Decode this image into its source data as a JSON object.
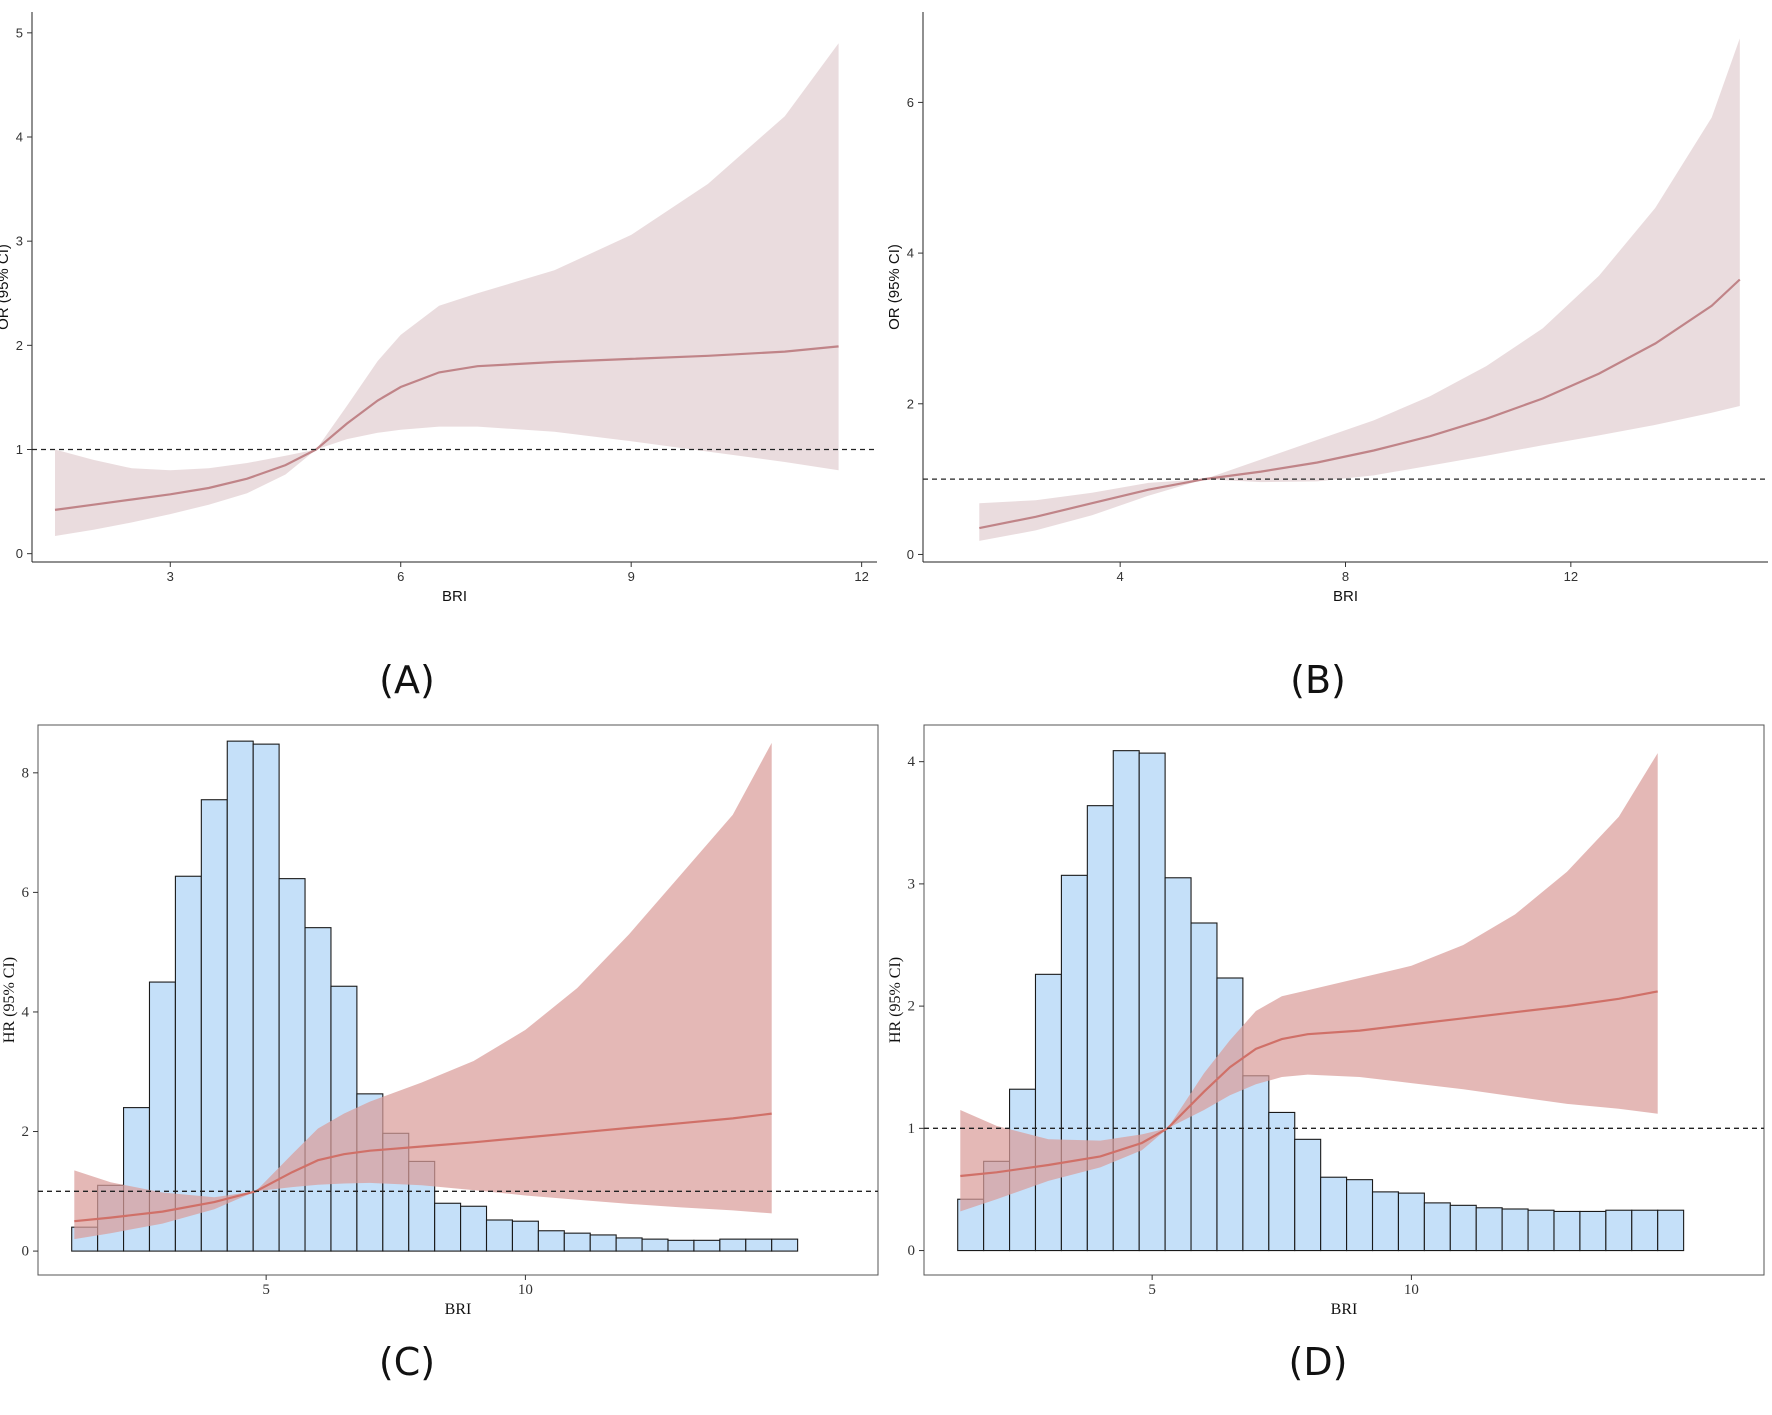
{
  "panel_labels": {
    "a": "(A)",
    "b": "(B)",
    "c": "(C)",
    "d": "(D)"
  },
  "colors": {
    "line_a_b": "#c08488",
    "band_a_b": "#e8d8da",
    "line_c_d": "#d07068",
    "band_c_d": "#d99c9a",
    "hist_fill": "#c5e0f9",
    "hist_stroke": "#1a1a1a",
    "reference_line": "#222222"
  },
  "chart_data": [
    {
      "id": "A",
      "type": "line",
      "style": "sans",
      "framed": false,
      "xlabel": "BRI",
      "ylabel": "OR (95% CI)",
      "xlim": [
        1.2,
        12.2
      ],
      "ylim": [
        -0.08,
        5.2
      ],
      "xticks": [
        3,
        6,
        9,
        12
      ],
      "yticks": [
        0,
        1,
        2,
        3,
        4,
        5
      ],
      "reference_y": 1,
      "series": [
        {
          "x": [
            1.5,
            2.0,
            2.5,
            3.0,
            3.5,
            4.0,
            4.5,
            4.9,
            5.3,
            5.7,
            6.0,
            6.5,
            7.0,
            8.0,
            9.0,
            10.0,
            11.0,
            11.7
          ],
          "y": [
            0.42,
            0.47,
            0.52,
            0.57,
            0.63,
            0.72,
            0.85,
            1.0,
            1.25,
            1.47,
            1.6,
            1.74,
            1.8,
            1.84,
            1.87,
            1.9,
            1.94,
            1.99
          ],
          "lower": [
            0.17,
            0.23,
            0.3,
            0.38,
            0.47,
            0.58,
            0.76,
            1.0,
            1.1,
            1.16,
            1.19,
            1.22,
            1.22,
            1.17,
            1.08,
            0.98,
            0.88,
            0.8
          ],
          "upper": [
            1.0,
            0.9,
            0.82,
            0.8,
            0.82,
            0.87,
            0.94,
            1.0,
            1.42,
            1.85,
            2.1,
            2.38,
            2.5,
            2.72,
            3.06,
            3.55,
            4.2,
            4.9
          ]
        }
      ]
    },
    {
      "id": "B",
      "type": "line",
      "style": "sans",
      "framed": false,
      "xlabel": "BRI",
      "ylabel": "OR (95% CI)",
      "xlim": [
        0.5,
        15.5
      ],
      "ylim": [
        -0.1,
        7.2
      ],
      "xticks": [
        4,
        8,
        12
      ],
      "yticks": [
        0,
        2,
        4,
        6
      ],
      "reference_y": 1,
      "series": [
        {
          "x": [
            1.5,
            2.5,
            3.5,
            4.5,
            5.5,
            6.5,
            7.5,
            8.5,
            9.5,
            10.5,
            11.5,
            12.5,
            13.5,
            14.5,
            15.0
          ],
          "y": [
            0.35,
            0.5,
            0.68,
            0.86,
            1.0,
            1.1,
            1.22,
            1.38,
            1.57,
            1.8,
            2.07,
            2.4,
            2.8,
            3.3,
            3.65
          ],
          "lower": [
            0.18,
            0.32,
            0.52,
            0.78,
            1.0,
            0.96,
            0.97,
            1.05,
            1.18,
            1.31,
            1.45,
            1.58,
            1.72,
            1.88,
            1.97
          ],
          "upper": [
            0.68,
            0.72,
            0.82,
            0.95,
            1.0,
            1.26,
            1.52,
            1.78,
            2.1,
            2.5,
            3.0,
            3.7,
            4.6,
            5.8,
            6.85
          ]
        }
      ]
    },
    {
      "id": "C",
      "type": "line",
      "style": "serif",
      "framed": true,
      "xlabel": "BRI",
      "ylabel": "HR (95% CI)",
      "xlim": [
        0.6,
        16.8
      ],
      "ylim": [
        -0.4,
        8.8
      ],
      "xticks": [
        5,
        10
      ],
      "yticks": [
        0,
        2,
        4,
        6,
        8
      ],
      "reference_y": 1,
      "histogram": {
        "bins_start": 1.25,
        "bin_width": 0.5,
        "heights": [
          0.4,
          1.1,
          2.4,
          4.5,
          6.27,
          7.55,
          8.53,
          8.48,
          6.23,
          5.41,
          4.43,
          2.63,
          1.97,
          1.5,
          0.8,
          0.75,
          0.52,
          0.5,
          0.34,
          0.3,
          0.27,
          0.22,
          0.2,
          0.18,
          0.18,
          0.2,
          0.2,
          0.2
        ]
      },
      "series": [
        {
          "x": [
            1.3,
            2.0,
            3.0,
            4.0,
            4.8,
            5.5,
            6.0,
            6.5,
            7.0,
            8.0,
            9.0,
            10.0,
            11.0,
            12.0,
            13.0,
            14.0,
            14.75
          ],
          "y": [
            0.5,
            0.56,
            0.66,
            0.82,
            1.0,
            1.32,
            1.52,
            1.62,
            1.68,
            1.75,
            1.82,
            1.9,
            1.98,
            2.06,
            2.14,
            2.22,
            2.3
          ],
          "lower": [
            0.2,
            0.3,
            0.46,
            0.7,
            1.0,
            1.07,
            1.11,
            1.13,
            1.14,
            1.1,
            1.02,
            0.93,
            0.86,
            0.79,
            0.73,
            0.68,
            0.63
          ],
          "upper": [
            1.35,
            1.15,
            0.98,
            0.9,
            1.0,
            1.62,
            2.05,
            2.3,
            2.5,
            2.82,
            3.18,
            3.7,
            4.4,
            5.3,
            6.3,
            7.3,
            8.5
          ]
        }
      ]
    },
    {
      "id": "D",
      "type": "line",
      "style": "serif",
      "framed": true,
      "xlabel": "BRI",
      "ylabel": "HR (95% CI)",
      "xlim": [
        0.6,
        16.8
      ],
      "ylim": [
        -0.2,
        4.3
      ],
      "xticks": [
        5,
        10
      ],
      "yticks": [
        0,
        1,
        2,
        3,
        4
      ],
      "reference_y": 1,
      "histogram": {
        "bins_start": 1.25,
        "bin_width": 0.5,
        "heights": [
          0.42,
          0.73,
          1.32,
          2.26,
          3.07,
          3.64,
          4.09,
          4.07,
          3.05,
          2.68,
          2.23,
          1.43,
          1.13,
          0.91,
          0.6,
          0.58,
          0.48,
          0.47,
          0.39,
          0.37,
          0.35,
          0.34,
          0.33,
          0.32,
          0.32,
          0.33,
          0.33,
          0.33
        ]
      },
      "series": [
        {
          "x": [
            1.3,
            2.0,
            3.0,
            4.0,
            4.8,
            5.3,
            6.0,
            6.5,
            7.0,
            7.5,
            8.0,
            9.0,
            10.0,
            11.0,
            12.0,
            13.0,
            14.0,
            14.75
          ],
          "y": [
            0.61,
            0.64,
            0.7,
            0.77,
            0.88,
            1.0,
            1.3,
            1.5,
            1.65,
            1.73,
            1.77,
            1.8,
            1.85,
            1.9,
            1.95,
            2.0,
            2.06,
            2.12
          ],
          "lower": [
            0.32,
            0.42,
            0.57,
            0.68,
            0.82,
            1.0,
            1.15,
            1.27,
            1.36,
            1.42,
            1.44,
            1.42,
            1.37,
            1.32,
            1.26,
            1.2,
            1.16,
            1.12
          ],
          "upper": [
            1.15,
            1.02,
            0.91,
            0.9,
            0.95,
            1.0,
            1.45,
            1.72,
            1.96,
            2.08,
            2.13,
            2.23,
            2.33,
            2.5,
            2.75,
            3.1,
            3.55,
            4.07
          ]
        }
      ]
    }
  ]
}
